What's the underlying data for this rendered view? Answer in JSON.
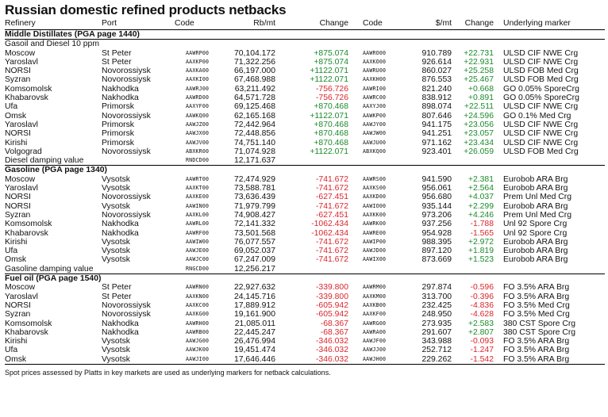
{
  "title": "Russian domestic refined products netbacks",
  "headers": {
    "refinery": "Refinery",
    "port": "Port",
    "code": "Code",
    "rb": "Rb/mt",
    "change": "Change",
    "code2": "Code",
    "usd": "$/mt",
    "change2": "Change",
    "marker": "Underlying marker"
  },
  "section_main": "Middle Distillates (PGA page 1440)",
  "sections": [
    {
      "name": "Gasoil and Diesel 10 ppm",
      "rows": [
        [
          "Moscow",
          "St Peter",
          "AAWRP00",
          "70,104.172",
          "+875.074",
          "AAWRO00",
          "910.789",
          "+22.731",
          "ULSD CIF NWE Crg"
        ],
        [
          "Yaroslavl",
          "St Peter",
          "AAXKP00",
          "71,322.256",
          "+875.074",
          "AAXKO00",
          "926.614",
          "+22.931",
          "ULSD CIF NWE Crg"
        ],
        [
          "NORSI",
          "Novorossiysk",
          "AAXKA00",
          "66,197.000",
          "+1122.071",
          "AAWRU00",
          "860.027",
          "+25.258",
          "ULSD FOB Med Crg"
        ],
        [
          "Syzran",
          "Novorossiysk",
          "AAXKI00",
          "67,468.988",
          "+1122.071",
          "AAXKH00",
          "876.553",
          "+25.467",
          "ULSD FOB Med Crg"
        ],
        [
          "Komsomolsk",
          "Nakhodka",
          "AAWRJ00",
          "63,211.492",
          "-756.726",
          "AAWRI00",
          "821.240",
          "+0.668",
          "GO 0.05% SporeCrg"
        ],
        [
          "Khabarovsk",
          "Nakhodka",
          "AAWRD00",
          "64,571.728",
          "-756.726",
          "AAWRC00",
          "838.912",
          "+0.891",
          "GO 0.05% SporeCrg"
        ],
        [
          "Ufa",
          "Primorsk",
          "AAXYF00",
          "69,125.468",
          "+870.468",
          "AAXYJ00",
          "898.074",
          "+22.511",
          "ULSD CIF NWE Crg"
        ],
        [
          "Omsk",
          "Novorossiysk",
          "AAWKQ00",
          "62,165.168",
          "+1122.071",
          "AAWKP00",
          "807.646",
          "+24.596",
          "GO 0.1% Med Crg"
        ],
        [
          "Yaroslavl",
          "Primorsk",
          "AAWJZ00",
          "72,442.964",
          "+870.468",
          "AAWJY00",
          "941.175",
          "+23.056",
          "ULSD CIF NWE Crg"
        ],
        [
          "NORSI",
          "Primorsk",
          "AAWJX00",
          "72,448.856",
          "+870.468",
          "AAWJW00",
          "941.251",
          "+23.057",
          "ULSD CIF NWE Crg"
        ],
        [
          "Kirishi",
          "Primorsk",
          "AAWJV00",
          "74,751.140",
          "+870.468",
          "AAWJU00",
          "971.162",
          "+23.434",
          "ULSD CIF NWE Crg"
        ],
        [
          "Volgograd",
          "Novorossiysk",
          "ABXKR00",
          "71,074.928",
          "+1122.071",
          "ABXKQ00",
          "923.401",
          "+26.059",
          "ULSD FOB Med Crg"
        ]
      ],
      "damping": {
        "label": "Diesel damping value",
        "code": "RNDCD00",
        "value": "12,171.637"
      }
    },
    {
      "name": "Gasoline (PGA page 1340)",
      "rows": [
        [
          "Moscow",
          "Vysotsk",
          "AAWRT00",
          "72,474.929",
          "-741.672",
          "AAWRS00",
          "941.590",
          "+2.381",
          "Eurobob ARA Brg"
        ],
        [
          "Yaroslavl",
          "Vysotsk",
          "AAXKT00",
          "73,588.781",
          "-741.672",
          "AAXKS00",
          "956.061",
          "+2.564",
          "Eurobob ARA Brg"
        ],
        [
          "NORSI",
          "Novorossiysk",
          "AAXKE00",
          "73,636.439",
          "-627.451",
          "AAXKD00",
          "956.680",
          "+4.037",
          "Prem Unl Med Crg"
        ],
        [
          "NORSI",
          "Vysotsk",
          "AAWIN00",
          "71,979.799",
          "-741.672",
          "AAWIO00",
          "935.144",
          "+2.299",
          "Eurobob ARA Brg"
        ],
        [
          "Syzran",
          "Novorossiysk",
          "AAXKL00",
          "74,908.427",
          "-627.451",
          "AAXKK00",
          "973.206",
          "+4.246",
          "Prem Unl Med Crg"
        ],
        [
          "Komsomolsk",
          "Nakhodka",
          "AAWRL00",
          "72,141.332",
          "-1062.434",
          "AAWRK00",
          "937.256",
          "-1.788",
          "Unl 92 Spore Crg"
        ],
        [
          "Khabarovsk",
          "Nakhodka",
          "AAWRF00",
          "73,501.568",
          "-1062.434",
          "AAWRE00",
          "954.928",
          "-1.565",
          "Unl 92 Spore Crg"
        ],
        [
          "Kirishi",
          "Vysotsk",
          "AAWIW00",
          "76,077.557",
          "-741.672",
          "AAWIP00",
          "988.395",
          "+2.972",
          "Eurobob ARA Brg"
        ],
        [
          "Ufa",
          "Vysotsk",
          "AAWJE00",
          "69,052.037",
          "-741.672",
          "AAWJD00",
          "897.120",
          "+1.819",
          "Eurobob ARA Brg"
        ],
        [
          "Omsk",
          "Vysotsk",
          "AAWJC00",
          "67,247.009",
          "-741.672",
          "AAWIX00",
          "873.669",
          "+1.523",
          "Eurobob ARA Brg"
        ]
      ],
      "damping": {
        "label": "Gasoline damping value",
        "code": "RNGCD00",
        "value": "12,256.217"
      }
    },
    {
      "name": "Fuel oil (PGA page 1540)",
      "rows": [
        [
          "Moscow",
          "St Peter",
          "AAWRN00",
          "22,927.632",
          "-339.800",
          "AAWRM00",
          "297.874",
          "-0.596",
          "FO 3.5% ARA Brg"
        ],
        [
          "Yaroslavl",
          "St Peter",
          "AAXKN00",
          "24,145.716",
          "-339.800",
          "AAXKM00",
          "313.700",
          "-0.396",
          "FO 3.5% ARA Brg"
        ],
        [
          "NORSI",
          "Novorossiysk",
          "AAXKC00",
          "17,889.912",
          "-605.942",
          "AAXKB00",
          "232.425",
          "-4.836",
          "FO 3.5% Med Crg"
        ],
        [
          "Syzran",
          "Novorossiysk",
          "AAXKG00",
          "19,161.900",
          "-605.942",
          "AAXKF00",
          "248.950",
          "-4.628",
          "FO 3.5% Med Crg"
        ],
        [
          "Komsomolsk",
          "Nakhodka",
          "AAWRH00",
          "21,085.011",
          "-68.367",
          "AAWRG00",
          "273.935",
          "+2.583",
          "380 CST Spore Crg"
        ],
        [
          "Khabarovsk",
          "Nakhodka",
          "AAWRB00",
          "22,445.247",
          "-68.367",
          "AAWRA00",
          "291.607",
          "+2.807",
          "380 CST Spore Crg"
        ],
        [
          "Kirishi",
          "Vysotsk",
          "AAWJG00",
          "26,476.994",
          "-346.032",
          "AAWJF00",
          "343.988",
          "-0.093",
          "FO 3.5% ARA Brg"
        ],
        [
          "Ufa",
          "Vysotsk",
          "AAWJK00",
          "19,451.474",
          "-346.032",
          "AAWJJ00",
          "252.712",
          "-1.247",
          "FO 3.5% ARA Brg"
        ],
        [
          "Omsk",
          "Vysotsk",
          "AAWJI00",
          "17,646.446",
          "-346.032",
          "AAWJH00",
          "229.262",
          "-1.542",
          "FO 3.5% ARA Brg"
        ]
      ]
    }
  ],
  "footnote": "Spot prices assessed by Platts in key markets are used as underlying markers for netback calculations.",
  "colors": {
    "positive": "#1a8a2a",
    "negative": "#d9252b"
  }
}
